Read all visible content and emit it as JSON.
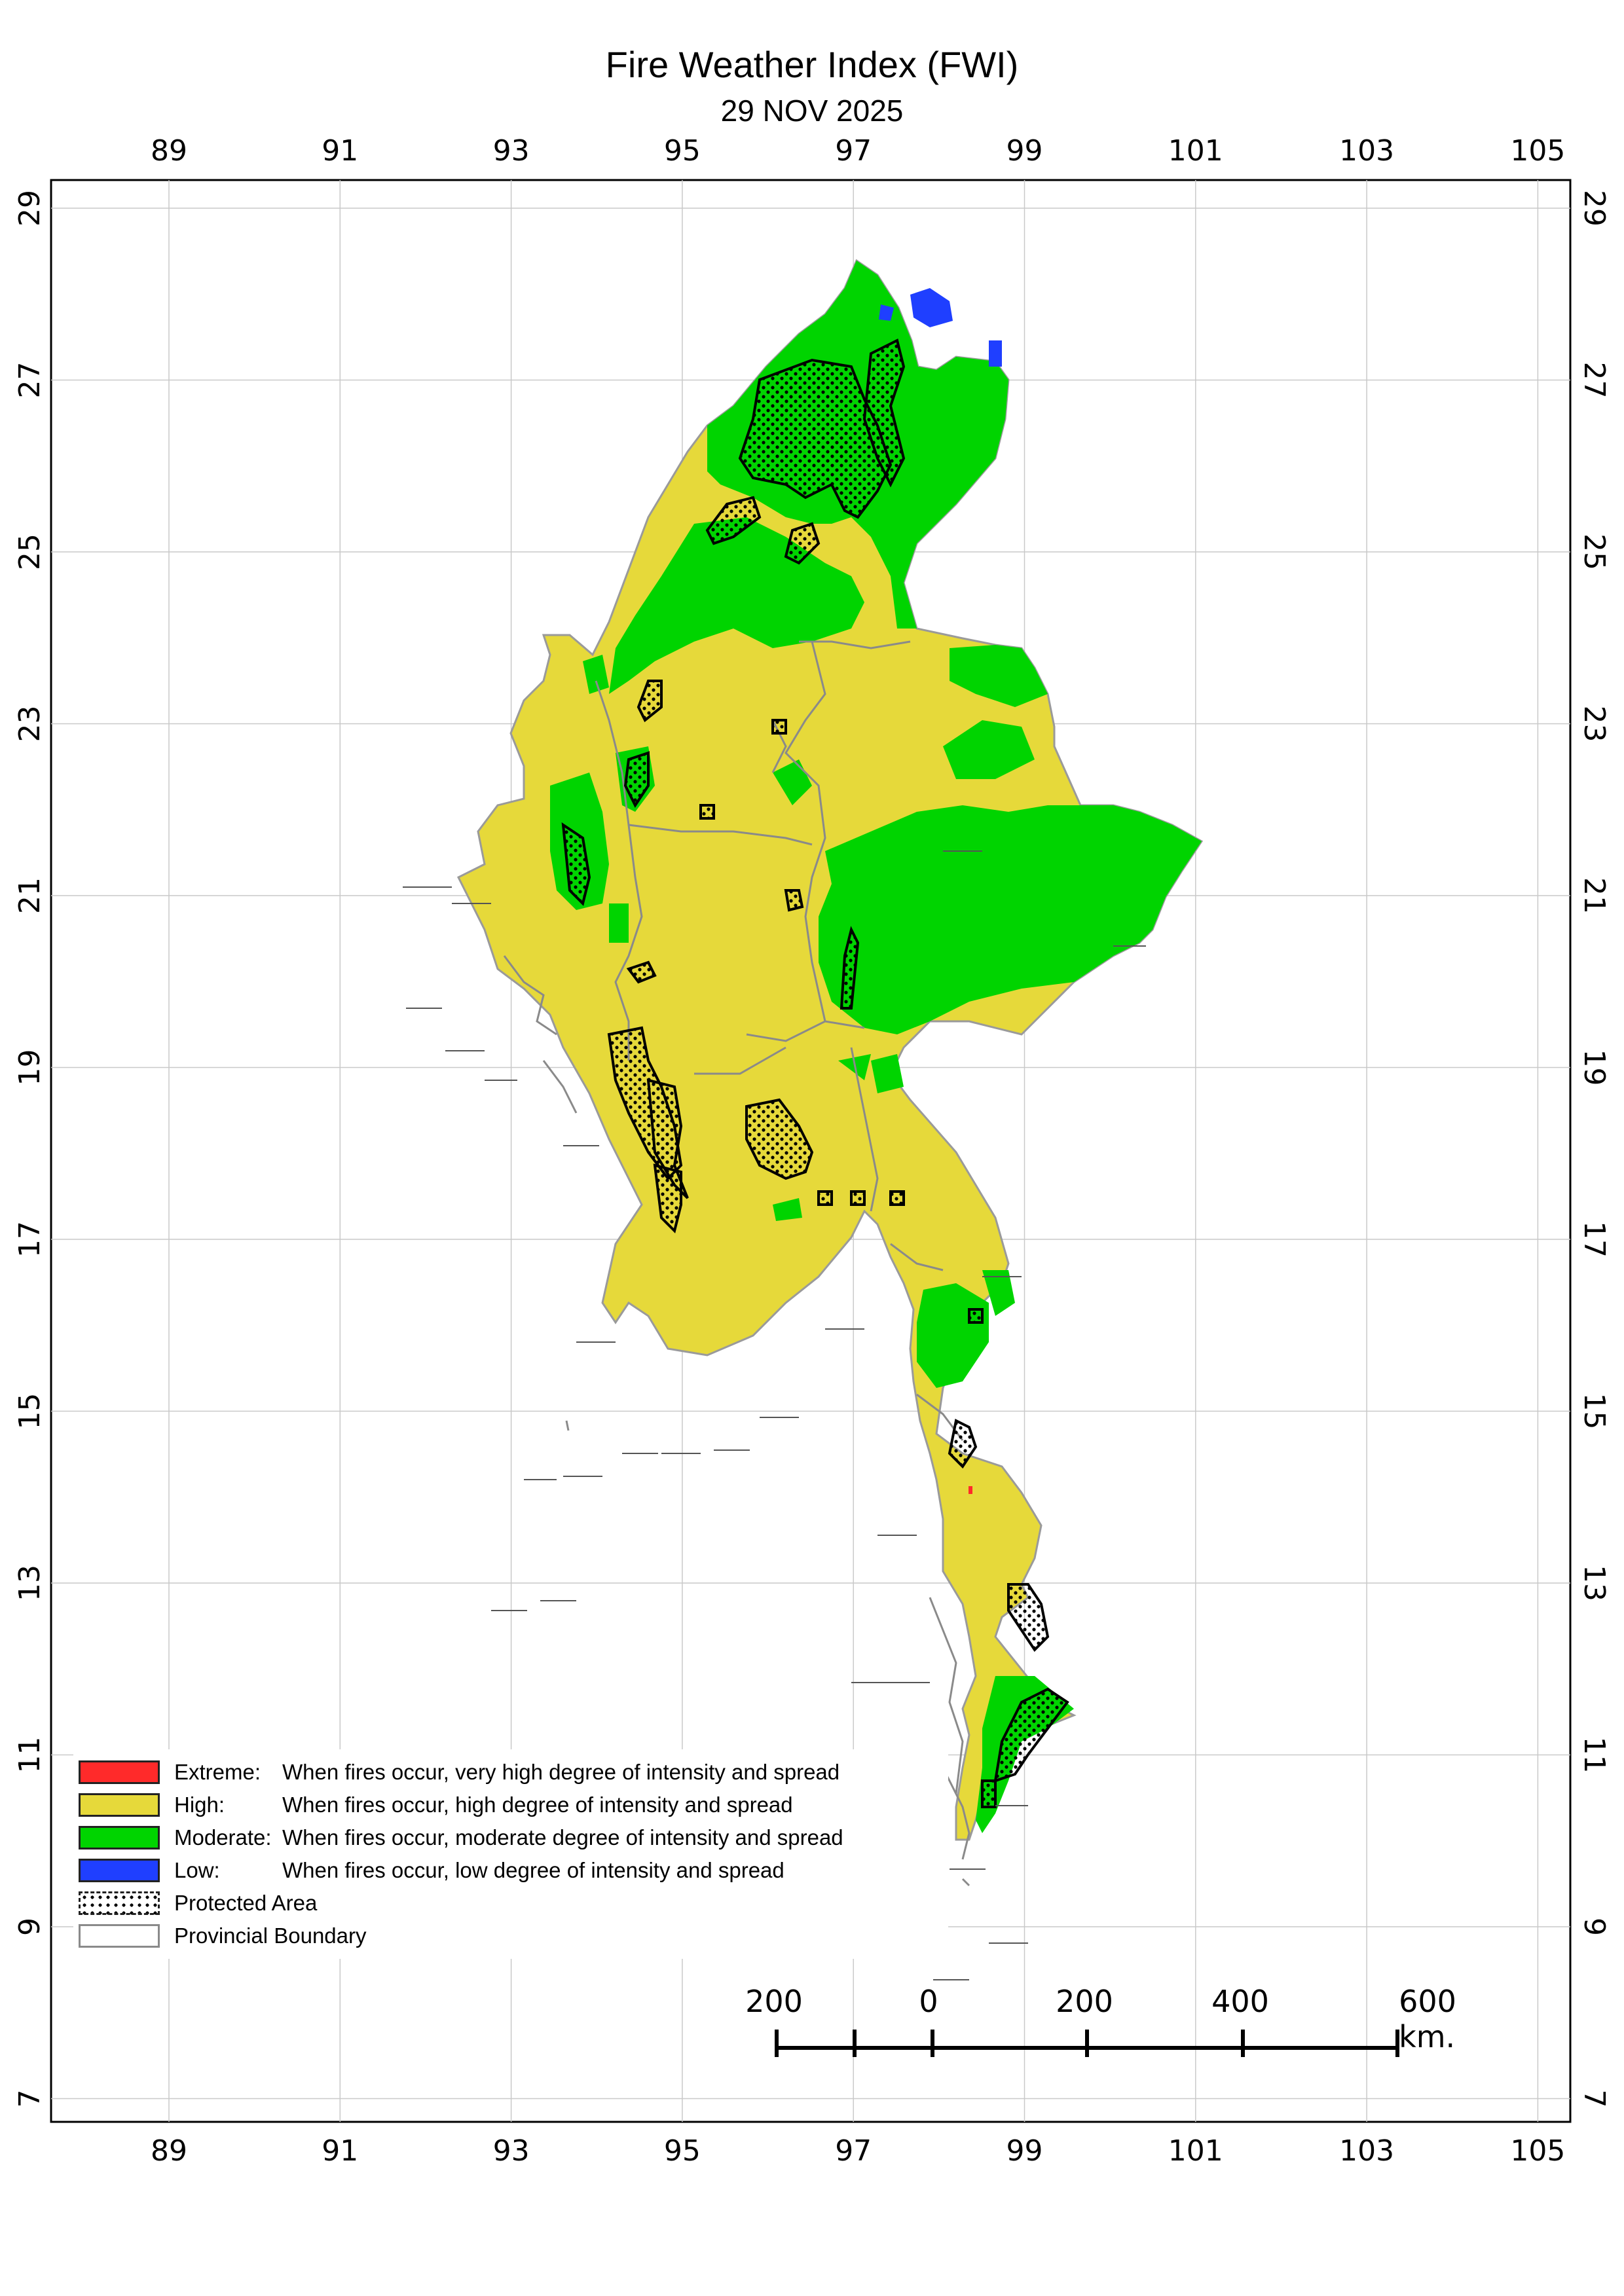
{
  "map": {
    "title": "Fire Weather Index (FWI)",
    "date": "29 NOV 2025",
    "longitude_ticks": [
      "89",
      "91",
      "93",
      "95",
      "97",
      "99",
      "101",
      "103",
      "105"
    ],
    "latitude_ticks": [
      "29",
      "27",
      "25",
      "23",
      "21",
      "19",
      "17",
      "15",
      "13",
      "11",
      "9",
      "7"
    ],
    "colors": {
      "extreme": "#ff2a2a",
      "high": "#e6d93a",
      "moderate": "#00d400",
      "low": "#1f3fff",
      "boundary": "#8a8a8a",
      "protected_outline": "#000000"
    }
  },
  "legend": {
    "items": [
      {
        "name": "Extreme:",
        "desc": "When fires occur, very high degree of intensity and spread"
      },
      {
        "name": "High:",
        "desc": "When fires occur, high degree of intensity and spread"
      },
      {
        "name": "Moderate:",
        "desc": "When fires occur, moderate degree of intensity and spread"
      },
      {
        "name": "Low:",
        "desc": "When fires occur, low degree of intensity and spread"
      }
    ],
    "protected_area": "Protected Area",
    "provincial_boundary": "Provincial Boundary"
  },
  "scale_bar": {
    "labels": [
      "200",
      "0",
      "200",
      "400",
      "600 km."
    ]
  }
}
